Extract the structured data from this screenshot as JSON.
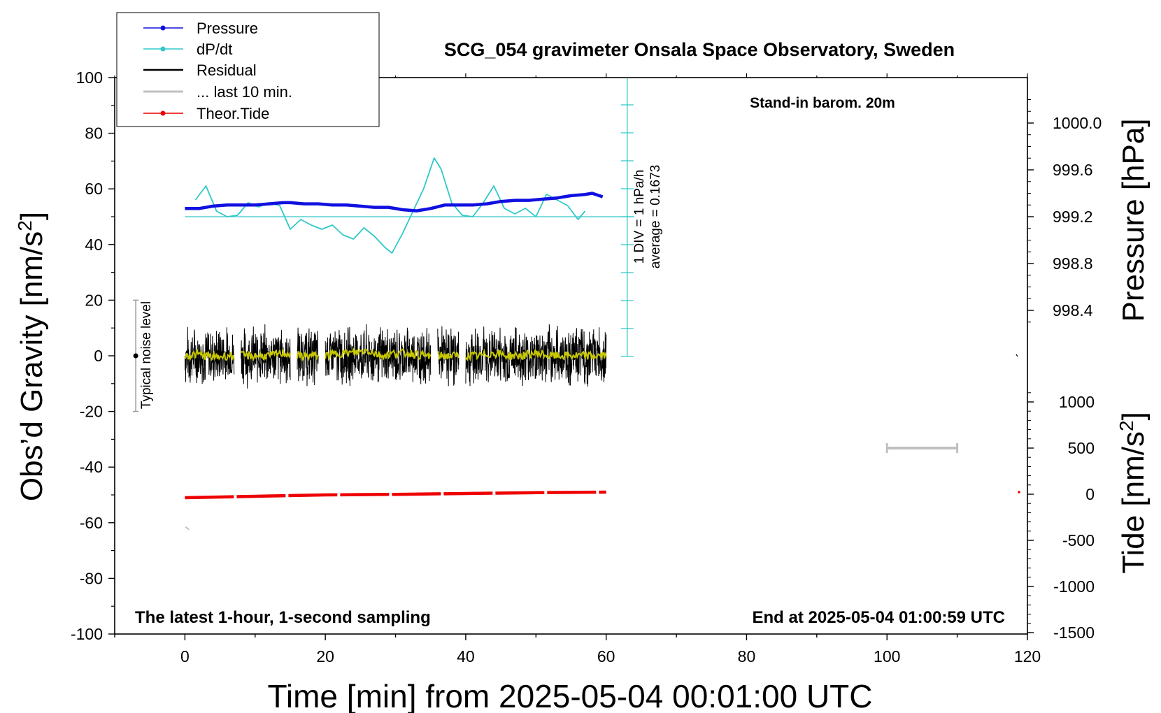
{
  "chart_data": {
    "type": "line",
    "title": "SCG_054 gravimeter Onsala Space Observatory, Sweden",
    "annotations": {
      "barometer": "Stand-in barom. 20m",
      "bottom_left": "The latest 1-hour, 1-second sampling",
      "bottom_right": "End at 2025-05-04 01:00:59 UTC",
      "noise": "Typical noise level",
      "dpdt_scale_1": "1 DIV = 1 hPa/h",
      "dpdt_scale_2": "average = 0.1673"
    },
    "xlabel": "Time [min] from 2025-05-04 00:01:00 UTC",
    "xlim": [
      -10,
      120
    ],
    "xticks": [
      "0",
      "20",
      "40",
      "60",
      "80",
      "100",
      "120"
    ],
    "y_left": {
      "label_main": "Obs’d Gravity [nm/s",
      "label_sup": "2",
      "label_end": "]",
      "ylim": [
        -100,
        100
      ],
      "ticks": [
        "100",
        "80",
        "60",
        "40",
        "20",
        "0",
        "-20",
        "-40",
        "-60",
        "-80",
        "-100"
      ]
    },
    "y_pressure": {
      "label": "Pressure [hPa]",
      "ticks": [
        "1000.0",
        "999.6",
        "999.2",
        "998.8",
        "998.4"
      ]
    },
    "y_tide": {
      "label_main": "Tide [nm/s",
      "label_sup": "2",
      "label_end": "]",
      "ticks": [
        "1000",
        "500",
        "0",
        "-500",
        "-1000",
        "-1500"
      ]
    },
    "legend": {
      "placement": "top-left",
      "items": [
        "Pressure",
        "dP/dt",
        "Residual",
        "... last 10 min.",
        "Theor.Tide"
      ]
    },
    "colors": {
      "pressure": "#1010e0",
      "dpdt": "#30c8c8",
      "residual": "#000000",
      "residual_smooth": "#c8c800",
      "last10": "#c0c0c0",
      "tide": "#ee0000"
    },
    "series": [
      {
        "name": "Pressure",
        "unit": "hPa",
        "x": [
          0,
          2,
          4,
          6,
          8,
          10,
          12,
          14,
          15,
          17,
          19,
          21,
          23,
          25,
          27,
          29,
          31,
          33,
          35,
          37,
          39,
          41,
          43,
          45,
          47,
          49,
          51,
          53,
          55,
          57,
          58,
          59.5
        ],
        "y": [
          999.27,
          999.27,
          999.29,
          999.3,
          999.3,
          999.3,
          999.31,
          999.32,
          999.32,
          999.31,
          999.31,
          999.3,
          999.3,
          999.29,
          999.28,
          999.28,
          999.26,
          999.25,
          999.27,
          999.3,
          999.3,
          999.3,
          999.31,
          999.33,
          999.34,
          999.34,
          999.35,
          999.36,
          999.38,
          999.39,
          999.4,
          999.37
        ]
      },
      {
        "name": "dP/dt",
        "unit": "hPa/h (1 DIV = 1 hPa/h)",
        "x": [
          1.5,
          3,
          4.5,
          6,
          7.5,
          9,
          10.5,
          12,
          13.5,
          15,
          16.5,
          18,
          19.5,
          21,
          22.5,
          24,
          25.5,
          27,
          28.5,
          29.5,
          31,
          32.5,
          34,
          35.5,
          36.5,
          38,
          39.5,
          41,
          42.5,
          44,
          45.5,
          47,
          48.5,
          50,
          51.5,
          53,
          54.5,
          56,
          57
        ],
        "y": [
          0.6,
          1.1,
          0.2,
          0.0,
          0.05,
          0.5,
          0.35,
          0.5,
          0.4,
          -0.45,
          -0.1,
          -0.3,
          -0.45,
          -0.3,
          -0.65,
          -0.8,
          -0.4,
          -0.7,
          -1.1,
          -1.3,
          -0.6,
          0.2,
          1.0,
          2.1,
          1.7,
          0.5,
          0.05,
          0.0,
          0.5,
          1.1,
          0.3,
          0.1,
          0.3,
          0.0,
          0.8,
          0.6,
          0.4,
          -0.1,
          0.2
        ]
      },
      {
        "name": "Residual",
        "unit": "nm/s2",
        "x": [
          0,
          2,
          4,
          6,
          7,
          8,
          10,
          12,
          14,
          15,
          16,
          18,
          19,
          20,
          22,
          24,
          26,
          28,
          30,
          32,
          34,
          35,
          36,
          38,
          39,
          40,
          42,
          44,
          46,
          48,
          50,
          52,
          54,
          56,
          58,
          60
        ],
        "y": [
          0,
          1,
          0,
          0,
          null,
          0,
          0,
          0,
          1,
          null,
          0,
          0,
          null,
          0,
          1,
          1,
          2,
          0,
          1,
          1,
          0,
          null,
          0,
          0,
          null,
          0,
          0,
          1,
          0,
          0,
          1,
          0,
          0,
          0,
          0,
          0
        ],
        "noise_amplitude": 10
      },
      {
        "name": "... last 10 min.",
        "unit": "nm/s2",
        "x": [
          0,
          2,
          4,
          6,
          8,
          10,
          12,
          14,
          16,
          18,
          20,
          22,
          24,
          26,
          28,
          30,
          32,
          34,
          36,
          38,
          40,
          42,
          44,
          46,
          48,
          50,
          52,
          54,
          56,
          58,
          60
        ],
        "y": [
          0,
          0.5,
          -0.5,
          0,
          0,
          0,
          0,
          1,
          0,
          0,
          0,
          1,
          1,
          2,
          0,
          1,
          1,
          0,
          0,
          0,
          0,
          0,
          1,
          0,
          0,
          1,
          0,
          0,
          0,
          0,
          0
        ]
      },
      {
        "name": "Theor.Tide",
        "unit": "nm/s2",
        "x": [
          0,
          10,
          20,
          30,
          40,
          50,
          60
        ],
        "y": [
          -51,
          -50.5,
          -50,
          -49.8,
          -49.5,
          -49.2,
          -49
        ]
      }
    ]
  }
}
